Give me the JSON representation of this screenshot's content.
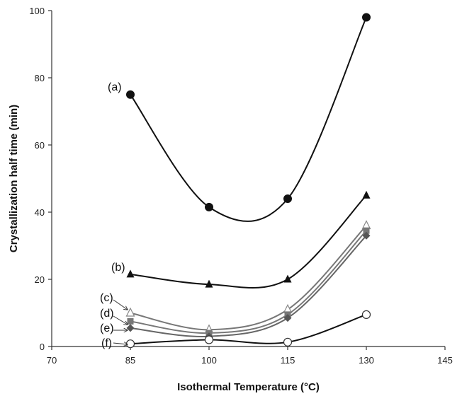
{
  "chart_data": {
    "type": "line",
    "title": "",
    "xlabel": "Isothermal Temperature (°C)",
    "ylabel": "Crystallization half time (min)",
    "xlim": [
      70,
      145
    ],
    "ylim": [
      0,
      100
    ],
    "xticks": [
      70,
      85,
      100,
      115,
      130,
      145
    ],
    "yticks": [
      0,
      20,
      40,
      60,
      80,
      100
    ],
    "grid": false,
    "x": [
      85,
      100,
      115,
      130
    ],
    "series": [
      {
        "label": "(a)",
        "values": [
          75,
          41.5,
          44,
          98
        ],
        "color": "#111111",
        "marker": "circle-filled"
      },
      {
        "label": "(b)",
        "values": [
          21.5,
          18.5,
          20,
          45
        ],
        "color": "#111111",
        "marker": "triangle-filled"
      },
      {
        "label": "(c)",
        "values": [
          10,
          5,
          11,
          36
        ],
        "color": "#777777",
        "marker": "triangle-open"
      },
      {
        "label": "(d)",
        "values": [
          7.5,
          4,
          9.5,
          34.5
        ],
        "color": "#777777",
        "marker": "square-filled"
      },
      {
        "label": "(e)",
        "values": [
          5.5,
          3,
          8.5,
          33
        ],
        "color": "#666666",
        "marker": "diamond-filled"
      },
      {
        "label": "(f)",
        "values": [
          0.8,
          2,
          1.3,
          9.5
        ],
        "color": "#111111",
        "marker": "circle-open"
      }
    ]
  }
}
